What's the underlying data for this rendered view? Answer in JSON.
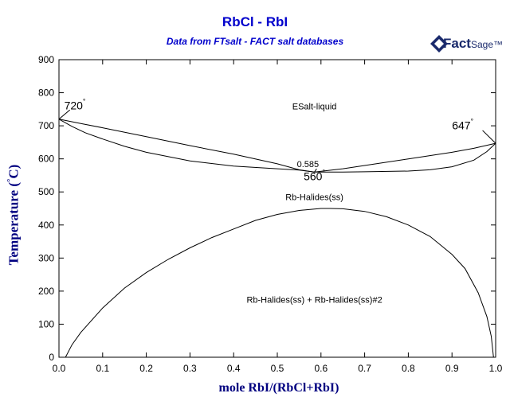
{
  "colors": {
    "title": "#0000cc",
    "axis_label": "#000080",
    "curve": "#000000",
    "background": "#ffffff"
  },
  "header": {
    "title": "RbCl - RbI",
    "subtitle": "Data from FTsalt - FACT salt databases",
    "logo_main": "Fact",
    "logo_suffix": "Sage™"
  },
  "chart_data": {
    "type": "line",
    "title": "RbCl - RbI",
    "subtitle": "Data from FTsalt - FACT salt databases",
    "xlabel": "mole RbI/(RbCl+RbI)",
    "ylabel_main": "Temperature (",
    "ylabel_deg": "°",
    "ylabel_unit": "C)",
    "xlim": [
      0,
      1
    ],
    "ylim": [
      0,
      900
    ],
    "xticks": [
      "0.0",
      "0.1",
      "0.2",
      "0.3",
      "0.4",
      "0.5",
      "0.6",
      "0.7",
      "0.8",
      "0.9",
      "1.0"
    ],
    "xtick_values": [
      0,
      0.1,
      0.2,
      0.3,
      0.4,
      0.5,
      0.6,
      0.7,
      0.8,
      0.9,
      1.0
    ],
    "yticks": [
      "0",
      "100",
      "200",
      "300",
      "400",
      "500",
      "600",
      "700",
      "800",
      "900"
    ],
    "ytick_values": [
      0,
      100,
      200,
      300,
      400,
      500,
      600,
      700,
      800,
      900
    ],
    "grid": false,
    "series": [
      {
        "x": [
          0.0,
          0.05,
          0.1,
          0.2,
          0.3,
          0.4,
          0.5,
          0.55,
          0.585,
          0.65,
          0.7,
          0.8,
          0.9,
          0.95,
          1.0
        ],
        "y": [
          720,
          707,
          694,
          667,
          640,
          614,
          585,
          567,
          560,
          570,
          580,
          600,
          620,
          632,
          647
        ]
      },
      {
        "x": [
          0.0,
          0.03,
          0.06,
          0.1,
          0.15,
          0.2,
          0.3,
          0.4,
          0.5,
          0.55,
          0.585,
          0.65,
          0.7,
          0.8,
          0.85,
          0.9,
          0.95,
          0.98,
          1.0
        ],
        "y": [
          720,
          698,
          679,
          660,
          638,
          620,
          594,
          578,
          570,
          566,
          560,
          560,
          561,
          563,
          567,
          576,
          596,
          622,
          647
        ]
      },
      {
        "x": [
          0.015,
          0.03,
          0.05,
          0.1,
          0.15,
          0.2,
          0.25,
          0.3,
          0.35,
          0.4,
          0.45,
          0.5,
          0.55,
          0.6,
          0.62,
          0.65,
          0.7,
          0.75,
          0.8,
          0.85,
          0.9,
          0.93,
          0.96,
          0.98,
          0.99,
          0.995
        ],
        "y": [
          0,
          38,
          75,
          149,
          209,
          256,
          296,
          331,
          362,
          388,
          414,
          432,
          444,
          450,
          450,
          449,
          441,
          425,
          400,
          365,
          311,
          268,
          195,
          123,
          63,
          0
        ]
      }
    ],
    "annotations": [
      {
        "text": "720",
        "deg": "°",
        "x": 0.012,
        "y": 750
      },
      {
        "text": "647",
        "deg": "°",
        "x": 0.9,
        "y": 690
      },
      {
        "text": "0.585",
        "x": 0.57,
        "y": 575
      },
      {
        "text": "560",
        "deg": "°",
        "x": 0.585,
        "y": 536
      },
      {
        "text": "ESalt-liquid",
        "x": 0.585,
        "y": 750
      },
      {
        "text": "Rb-Halides(ss)",
        "x": 0.585,
        "y": 475
      },
      {
        "text": "Rb-Halides(ss) + Rb-Halides(ss)#2",
        "x": 0.585,
        "y": 165
      }
    ],
    "leaders": [
      {
        "x1": 0.0,
        "y1": 720,
        "x2": 0.025,
        "y2": 748
      },
      {
        "x1": 1.0,
        "y1": 647,
        "x2": 0.97,
        "y2": 686
      },
      {
        "x1": 0.585,
        "y1": 560,
        "x2": 0.59,
        "y2": 570
      }
    ]
  }
}
